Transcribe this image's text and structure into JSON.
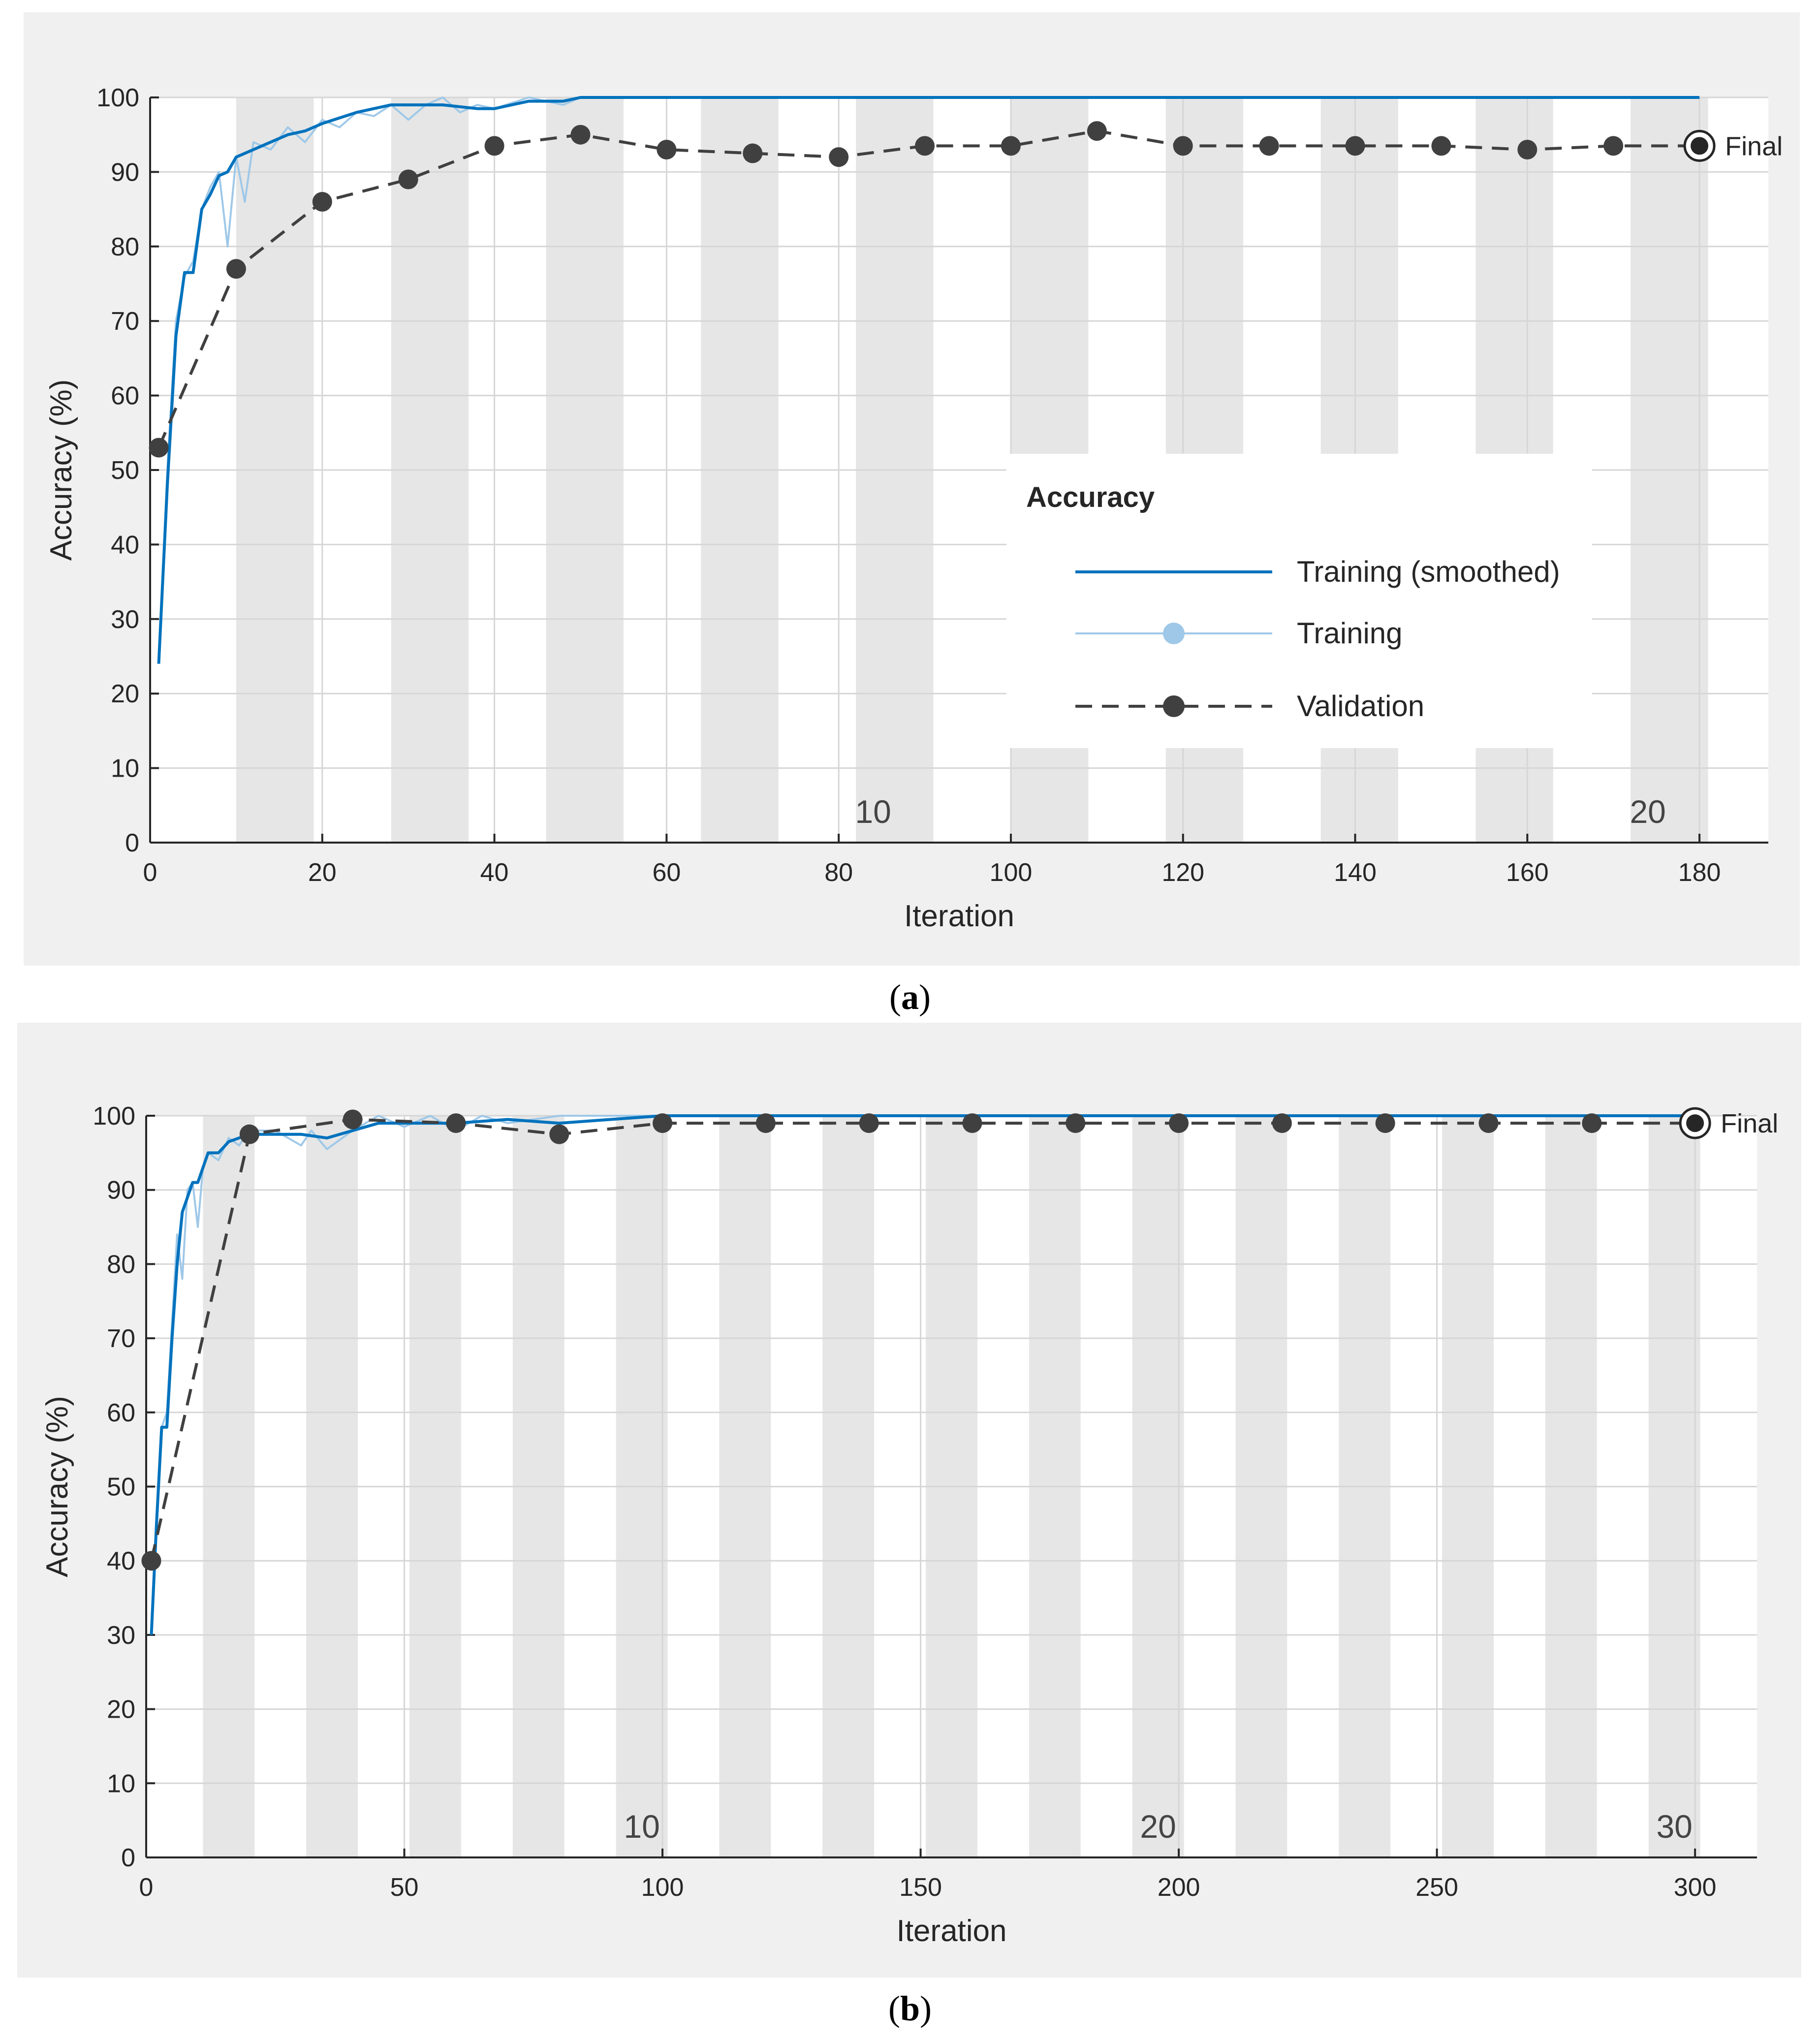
{
  "chart_data": [
    {
      "type": "line",
      "panel": "a",
      "title": "",
      "xlabel": "Iteration",
      "ylabel": "Accuracy (%)",
      "xlim": [
        0,
        188
      ],
      "ylim": [
        0,
        100
      ],
      "xticks": [
        0,
        20,
        40,
        60,
        80,
        100,
        120,
        140,
        160,
        180
      ],
      "yticks": [
        0,
        10,
        20,
        30,
        40,
        50,
        60,
        70,
        80,
        90,
        100
      ],
      "epoch_bands": [
        [
          10,
          19
        ],
        [
          28,
          37
        ],
        [
          46,
          55
        ],
        [
          64,
          73
        ],
        [
          82,
          91
        ],
        [
          100,
          109
        ],
        [
          118,
          127
        ],
        [
          136,
          145
        ],
        [
          154,
          163
        ],
        [
          172,
          181
        ]
      ],
      "epoch_labels": [
        {
          "x": 84,
          "text": "10"
        },
        {
          "x": 174,
          "text": "20"
        }
      ],
      "legend": {
        "title": "Accuracy",
        "position": "right",
        "entries": [
          "Training (smoothed)",
          "Training",
          "Validation"
        ]
      },
      "final_label": "Final",
      "series": [
        {
          "name": "Training (smoothed)",
          "color": "#0072bd",
          "x": [
            1,
            2,
            3,
            4,
            5,
            6,
            7,
            8,
            9,
            10,
            12,
            14,
            16,
            18,
            20,
            24,
            28,
            30,
            34,
            38,
            40,
            44,
            48,
            50,
            60,
            70,
            80,
            90,
            100,
            120,
            140,
            160,
            180
          ],
          "y": [
            24,
            48,
            68,
            76.5,
            76.5,
            85,
            87,
            89.5,
            90,
            92,
            93,
            94,
            95,
            95.5,
            96.5,
            98,
            99,
            99,
            99,
            98.5,
            98.5,
            99.5,
            99.5,
            100,
            100,
            100,
            100,
            100,
            100,
            100,
            100,
            100,
            100
          ]
        },
        {
          "name": "Training",
          "color": "#9fc8e8",
          "x": [
            1,
            2,
            3,
            4,
            5,
            6,
            7,
            8,
            9,
            10,
            11,
            12,
            14,
            16,
            18,
            20,
            22,
            24,
            26,
            28,
            30,
            32,
            34,
            36,
            38,
            40,
            44,
            48,
            50,
            60,
            70,
            80,
            90,
            100,
            120,
            140,
            160,
            180
          ],
          "y": [
            24,
            50,
            70,
            76,
            78,
            85,
            88,
            90,
            80,
            92,
            86,
            94,
            93,
            96,
            94,
            97,
            96,
            98,
            97.5,
            99,
            97,
            99,
            100,
            98,
            99,
            98.5,
            100,
            99,
            100,
            100,
            100,
            100,
            100,
            100,
            100,
            100,
            100,
            100
          ]
        },
        {
          "name": "Validation",
          "color": "#404040",
          "x": [
            1,
            10,
            20,
            30,
            40,
            50,
            60,
            70,
            80,
            90,
            100,
            110,
            120,
            130,
            140,
            150,
            160,
            170,
            180
          ],
          "y": [
            53,
            77,
            86,
            89,
            93.5,
            95,
            93,
            92.5,
            92,
            93.5,
            93.5,
            95.5,
            93.5,
            93.5,
            93.5,
            93.5,
            93,
            93.5,
            93.5
          ]
        }
      ]
    },
    {
      "type": "line",
      "panel": "b",
      "title": "",
      "xlabel": "Iteration",
      "ylabel": "Accuracy (%)",
      "xlim": [
        0,
        312
      ],
      "ylim": [
        0,
        100
      ],
      "xticks": [
        0,
        50,
        100,
        150,
        200,
        250,
        300
      ],
      "yticks": [
        0,
        10,
        20,
        30,
        40,
        50,
        60,
        70,
        80,
        90,
        100
      ],
      "epoch_bands": [
        [
          11,
          21
        ],
        [
          31,
          41
        ],
        [
          51,
          61
        ],
        [
          71,
          81
        ],
        [
          91,
          101
        ],
        [
          111,
          121
        ],
        [
          131,
          141
        ],
        [
          151,
          161
        ],
        [
          171,
          181
        ],
        [
          191,
          201
        ],
        [
          211,
          221
        ],
        [
          231,
          241
        ],
        [
          251,
          261
        ],
        [
          271,
          281
        ],
        [
          291,
          301
        ]
      ],
      "epoch_labels": [
        {
          "x": 96,
          "text": "10"
        },
        {
          "x": 196,
          "text": "20"
        },
        {
          "x": 296,
          "text": "30"
        }
      ],
      "final_label": "Final",
      "series": [
        {
          "name": "Training (smoothed)",
          "color": "#0072bd",
          "x": [
            1,
            2,
            3,
            4,
            5,
            6,
            7,
            8,
            9,
            10,
            12,
            14,
            16,
            18,
            20,
            25,
            30,
            35,
            40,
            45,
            50,
            60,
            70,
            80,
            90,
            100,
            120,
            150,
            200,
            250,
            300
          ],
          "y": [
            30,
            45,
            58,
            58,
            70,
            80,
            87,
            89,
            91,
            91,
            95,
            95,
            96.5,
            97,
            97.5,
            97.5,
            97.5,
            97,
            98,
            99,
            99,
            99,
            99.5,
            99,
            99.5,
            100,
            100,
            100,
            100,
            100,
            100
          ]
        },
        {
          "name": "Training",
          "color": "#9fc8e8",
          "x": [
            1,
            2,
            3,
            4,
            5,
            6,
            7,
            8,
            9,
            10,
            11,
            12,
            14,
            16,
            18,
            20,
            25,
            30,
            32,
            35,
            38,
            40,
            45,
            50,
            55,
            60,
            65,
            70,
            80,
            90,
            100,
            120,
            150,
            200,
            250,
            300
          ],
          "y": [
            30,
            45,
            58,
            60,
            72,
            84,
            78,
            90,
            91,
            85,
            93,
            95,
            94,
            97,
            96,
            98,
            98,
            96,
            98,
            95.5,
            97,
            98,
            100,
            98.5,
            100,
            98,
            100,
            99,
            100,
            100,
            100,
            100,
            100,
            100,
            100,
            100
          ]
        },
        {
          "name": "Validation",
          "color": "#404040",
          "x": [
            1,
            20,
            40,
            60,
            80,
            100,
            120,
            140,
            160,
            180,
            200,
            220,
            240,
            260,
            280,
            300
          ],
          "y": [
            40,
            97.5,
            99.5,
            99,
            97.5,
            99,
            99,
            99,
            99,
            99,
            99,
            99,
            99,
            99,
            99,
            99
          ]
        }
      ]
    }
  ],
  "captions": {
    "a_letter": "a",
    "b_letter": "b"
  }
}
